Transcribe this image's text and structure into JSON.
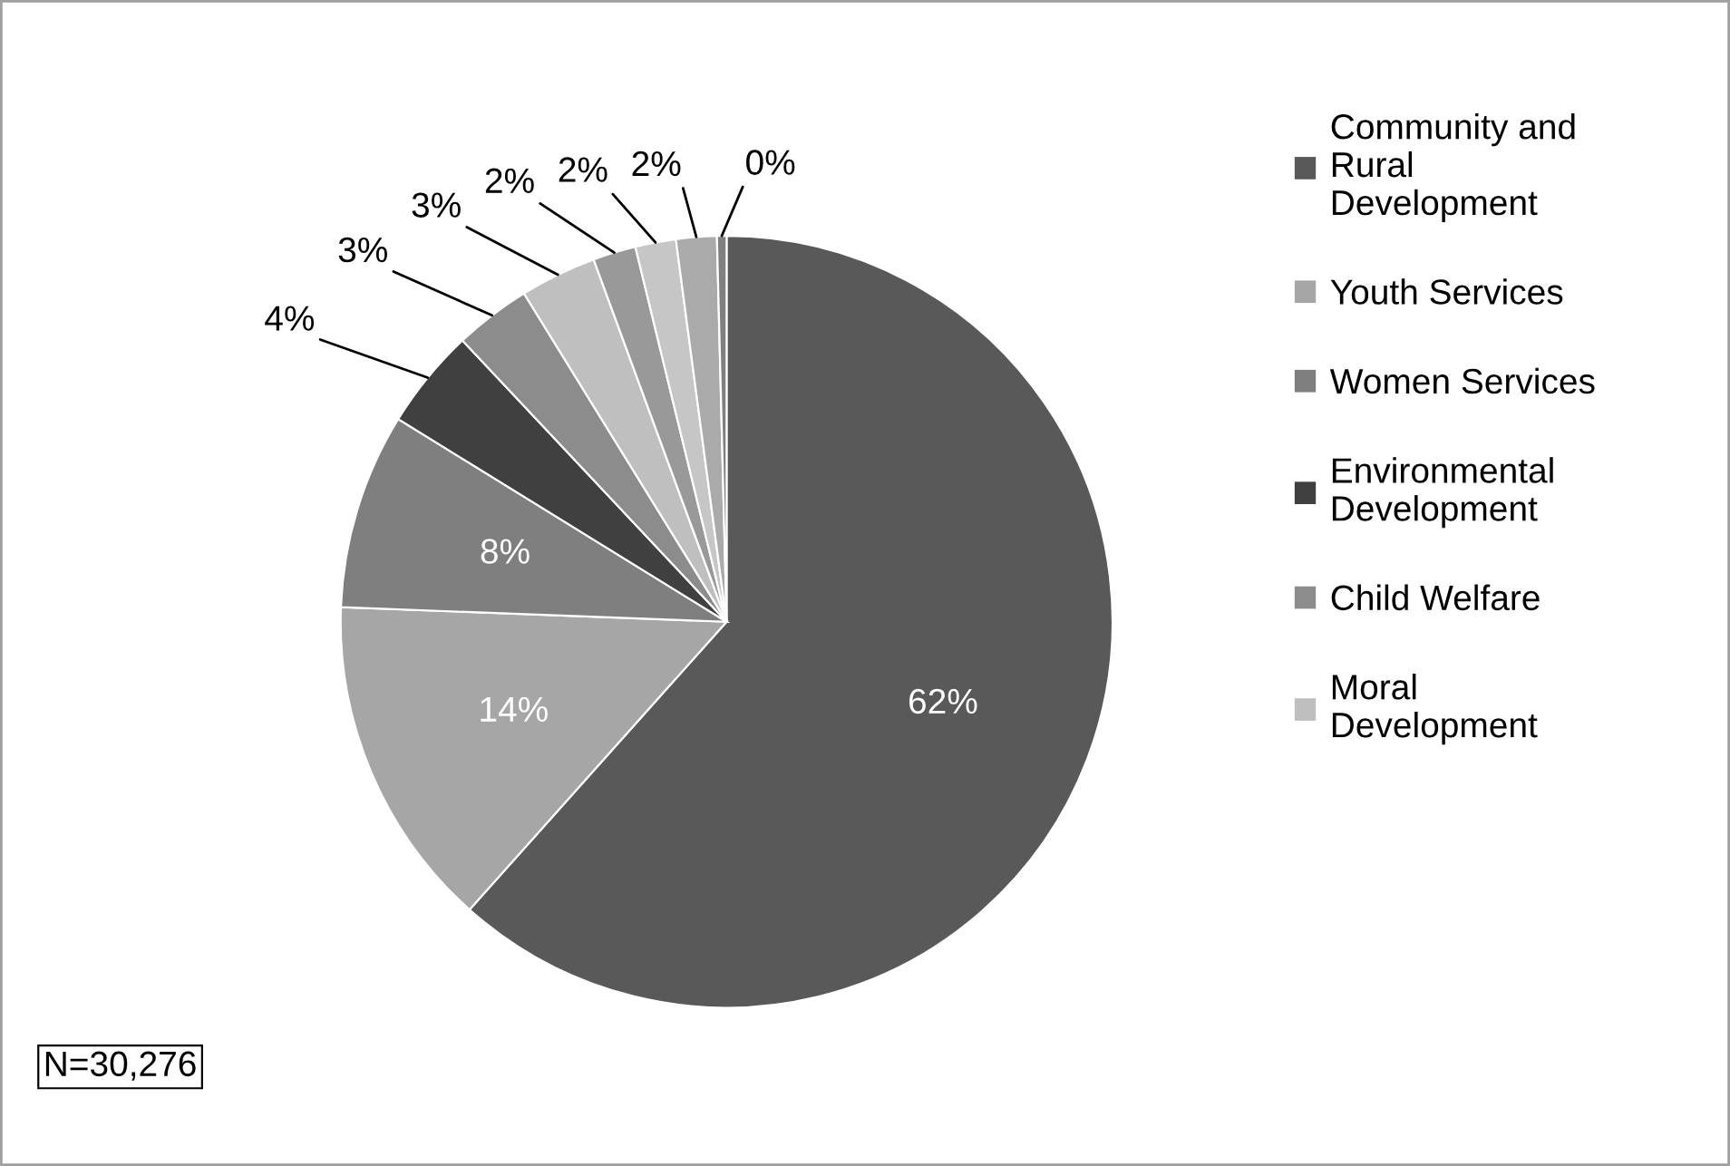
{
  "chart_data": {
    "type": "pie",
    "categories": [
      "Community and Rural Development",
      "Youth Services",
      "Women Services",
      "Environmental Development",
      "Child Welfare",
      "Moral Development",
      null,
      null,
      null,
      null
    ],
    "values": [
      61.6,
      14.0,
      8.2,
      4.2,
      3.2,
      3.2,
      1.8,
      1.7,
      1.7,
      0.4
    ],
    "value_labels": [
      "62%",
      "14%",
      "8%",
      "4%",
      "3%",
      "3%",
      "2%",
      "2%",
      "2%",
      "0%"
    ],
    "colors": [
      "#595959",
      "#a6a6a6",
      "#7f7f7f",
      "#404040",
      "#8c8c8c",
      "#bfbfbf",
      "#999999",
      "#c6c6c6",
      "#aaaaaa",
      "#808080"
    ],
    "legend": "right",
    "annotations": [
      "N=30,276"
    ]
  }
}
